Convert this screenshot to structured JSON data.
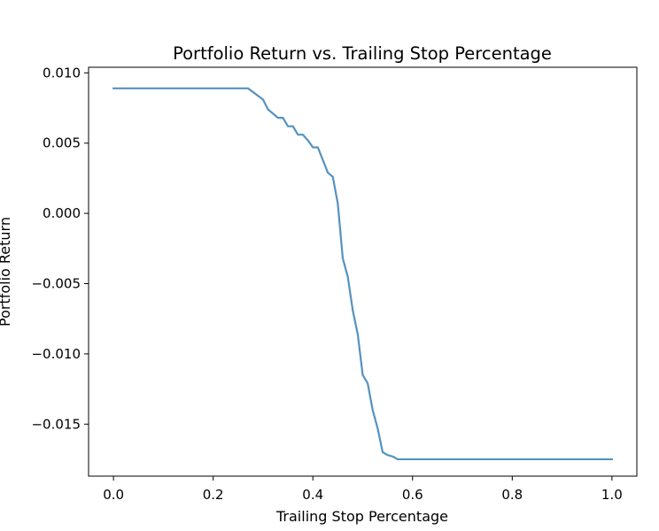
{
  "chart_data": {
    "type": "line",
    "title": "Portfolio Return vs. Trailing Stop Percentage",
    "xlabel": "Trailing Stop Percentage",
    "ylabel": "Portfolio Return",
    "xlim": [
      -0.05,
      1.05
    ],
    "ylim": [
      -0.0187,
      0.0104
    ],
    "xticks": [
      0.0,
      0.2,
      0.4,
      0.6,
      0.8,
      1.0
    ],
    "xtick_labels": [
      "0.0",
      "0.2",
      "0.4",
      "0.6",
      "0.8",
      "1.0"
    ],
    "yticks": [
      0.01,
      0.005,
      0.0,
      -0.005,
      -0.01,
      -0.015
    ],
    "ytick_labels": [
      "0.010",
      "0.005",
      "0.000",
      "−0.005",
      "−0.010",
      "−0.015"
    ],
    "grid": false,
    "line_color": "#5592c0",
    "series": [
      {
        "name": "",
        "x": [
          0.0,
          0.27,
          0.3,
          0.31,
          0.33,
          0.34,
          0.35,
          0.36,
          0.37,
          0.38,
          0.39,
          0.4,
          0.41,
          0.42,
          0.43,
          0.44,
          0.45,
          0.46,
          0.47,
          0.48,
          0.49,
          0.5,
          0.51,
          0.52,
          0.53,
          0.54,
          0.55,
          0.56,
          0.57,
          0.58,
          1.0
        ],
        "y": [
          0.0089,
          0.0089,
          0.0081,
          0.0074,
          0.0068,
          0.0068,
          0.0062,
          0.0062,
          0.0056,
          0.0056,
          0.0052,
          0.0047,
          0.0047,
          0.0038,
          0.0029,
          0.0026,
          0.0007,
          -0.0032,
          -0.0045,
          -0.0069,
          -0.0086,
          -0.0115,
          -0.0121,
          -0.014,
          -0.0153,
          -0.017,
          -0.0172,
          -0.0173,
          -0.0175,
          -0.0175,
          -0.0175
        ]
      }
    ]
  }
}
